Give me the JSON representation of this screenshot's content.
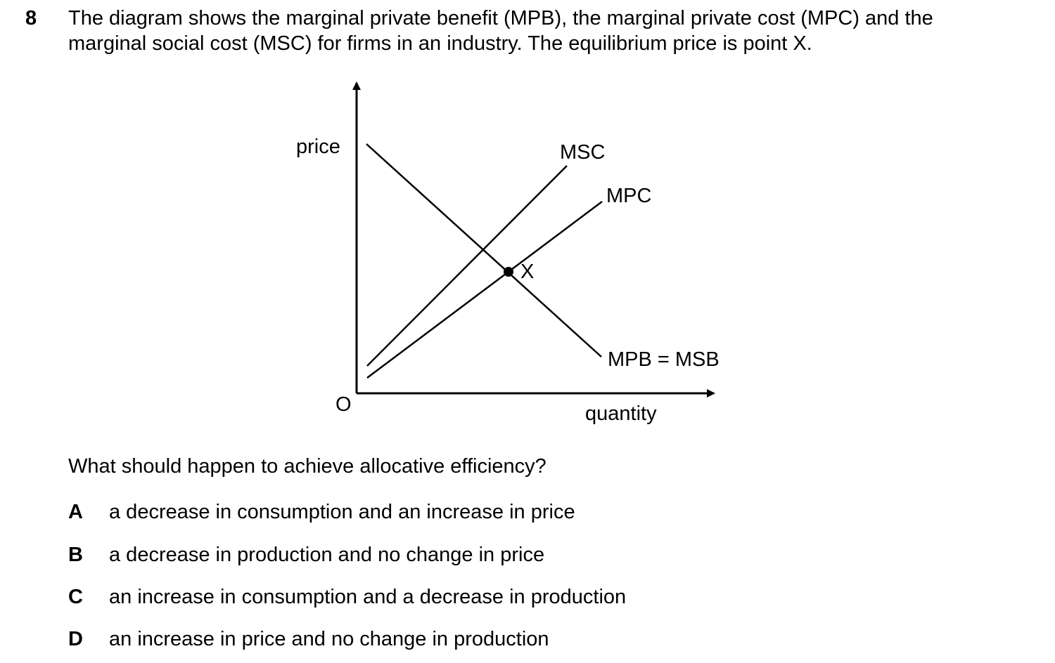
{
  "question": {
    "number": "8",
    "stem_lines": [
      "The diagram shows the marginal private benefit (MPB), the marginal private cost (MPC) and the",
      "marginal social cost (MSC) for firms in an industry. The equilibrium price is point X."
    ],
    "prompt": "What should happen to achieve allocative efficiency?",
    "options": [
      {
        "letter": "A",
        "text": "a decrease in consumption and an increase in price"
      },
      {
        "letter": "B",
        "text": "a decrease in production and no change in price"
      },
      {
        "letter": "C",
        "text": "an increase in consumption and a decrease in production"
      },
      {
        "letter": "D",
        "text": "an increase in price and no change in production"
      }
    ]
  },
  "diagram": {
    "y_axis_label": "price",
    "x_axis_label": "quantity",
    "origin_label": "O",
    "curve_labels": {
      "msc": "MSC",
      "mpc": "MPC",
      "demand": "MPB = MSB"
    },
    "point_label": "X"
  }
}
